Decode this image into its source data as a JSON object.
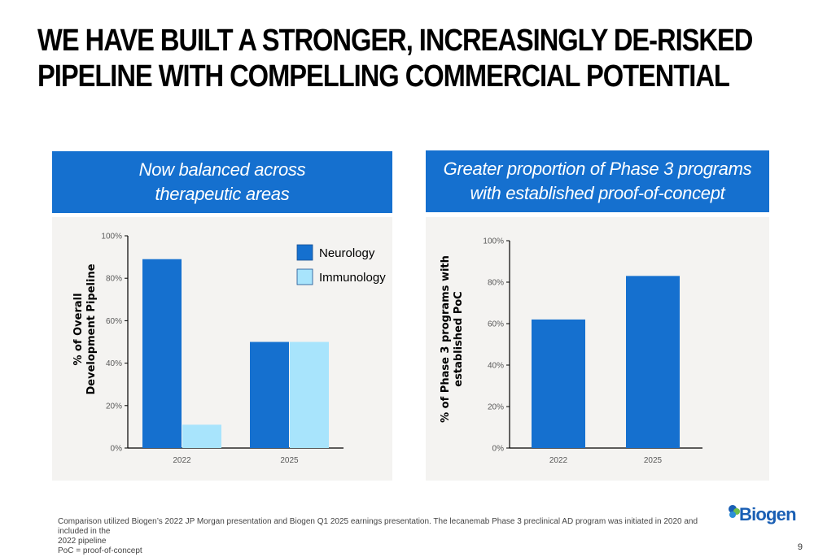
{
  "slide": {
    "title_lines": [
      "WE HAVE BUILT A STRONGER, INCREASINGLY DE-RISKED",
      "PIPELINE WITH COMPELLING COMMERCIAL POTENTIAL"
    ],
    "footnote_lines": [
      "Comparison utilized Biogen’s 2022 JP Morgan presentation and Biogen Q1 2025 earnings presentation. The lecanemab Phase 3 preclinical AD program was initiated in 2020 and included in the",
      "2022 pipeline",
      "PoC = proof-of-concept"
    ],
    "logo_text": "Biogen",
    "page_number": "9"
  },
  "colors": {
    "banner": "#1570cf",
    "neurology": "#1570cf",
    "immunology": "#a8e4fc",
    "panel_bg": "#f4f3f1"
  },
  "chart_data": [
    {
      "type": "bar",
      "banner_lines": [
        "Now balanced across",
        "therapeutic areas"
      ],
      "ylabel_lines": [
        "% of Overall",
        "Development Pipeline"
      ],
      "xlabel": "",
      "categories": [
        "2022",
        "2025"
      ],
      "series": [
        {
          "name": "Neurology",
          "values": [
            89,
            50
          ]
        },
        {
          "name": "Immunology",
          "values": [
            11,
            50
          ]
        }
      ],
      "ylim": [
        0,
        100
      ],
      "yticks": [
        "0%",
        "20%",
        "40%",
        "60%",
        "80%",
        "100%"
      ],
      "grid": false,
      "legend": "top-right"
    },
    {
      "type": "bar",
      "banner_lines": [
        "Greater proportion of Phase 3 programs",
        "with established proof-of-concept"
      ],
      "ylabel_lines": [
        "% of Phase 3 programs with",
        "established PoC"
      ],
      "xlabel": "",
      "categories": [
        "2022",
        "2025"
      ],
      "series": [
        {
          "values": [
            62,
            83
          ]
        }
      ],
      "ylim": [
        0,
        100
      ],
      "yticks": [
        "0%",
        "20%",
        "40%",
        "60%",
        "80%",
        "100%"
      ],
      "grid": false,
      "legend": "none"
    }
  ]
}
